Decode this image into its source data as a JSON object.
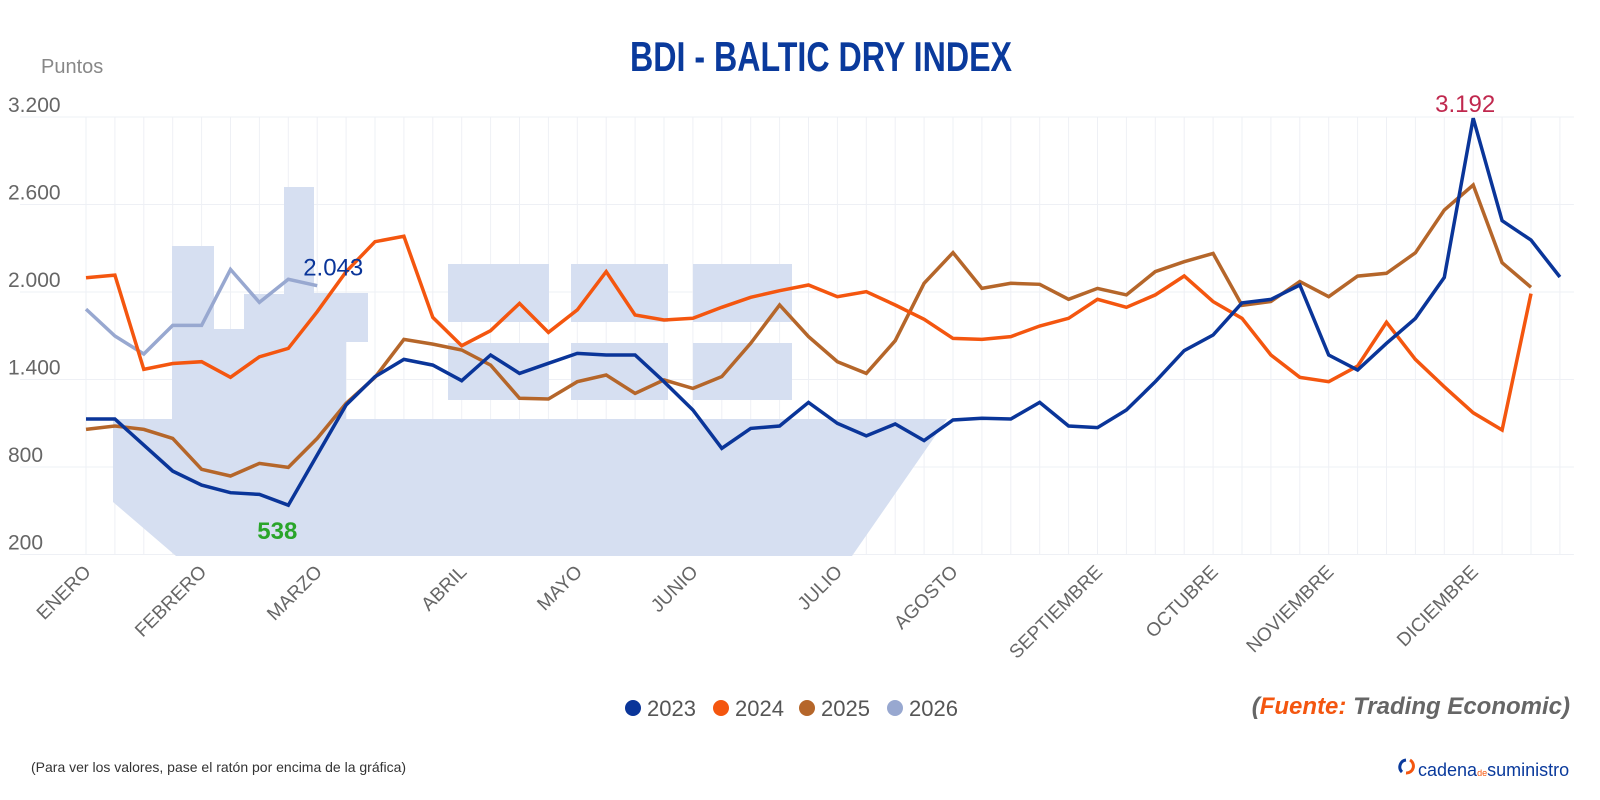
{
  "chart_data": {
    "type": "line",
    "title": "BDI - BALTIC DRY INDEX",
    "ylabel": "Puntos",
    "ylim": [
      200,
      3200
    ],
    "yticks": [
      "200",
      "800",
      "1.400",
      "2.000",
      "2.600",
      "3.200"
    ],
    "ytick_values": [
      200,
      800,
      1400,
      2000,
      2600,
      3200
    ],
    "x_count": 52,
    "xticks": [
      {
        "label": "ENERO",
        "index": 0
      },
      {
        "label": "FEBRERO",
        "index": 4
      },
      {
        "label": "MARZO",
        "index": 8
      },
      {
        "label": "ABRIL",
        "index": 13
      },
      {
        "label": "MAYO",
        "index": 17
      },
      {
        "label": "JUNIO",
        "index": 21
      },
      {
        "label": "JULIO",
        "index": 26
      },
      {
        "label": "AGOSTO",
        "index": 30
      },
      {
        "label": "SEPTIEMBRE",
        "index": 35
      },
      {
        "label": "OCTUBRE",
        "index": 39
      },
      {
        "label": "NOVIEMBRE",
        "index": 43
      },
      {
        "label": "DICIEMBRE",
        "index": 48
      }
    ],
    "grid": true,
    "legend_position": "bottom",
    "series": [
      {
        "name": "2023",
        "color": "#0a3599",
        "values": [
          1129,
          1129,
          950,
          772,
          676,
          624,
          612,
          538,
          882,
          1225,
          1419,
          1538,
          1499,
          1392,
          1568,
          1442,
          1511,
          1579,
          1568,
          1568,
          1385,
          1191,
          928,
          1065,
          1081,
          1243,
          1099,
          1013,
          1095,
          981,
          1122,
          1134,
          1129,
          1243,
          1081,
          1070,
          1191,
          1385,
          1598,
          1705,
          1925,
          1949,
          2048,
          1568,
          1465,
          1648,
          1819,
          2100,
          3192,
          2489,
          2356,
          2103
        ]
      },
      {
        "name": "2024",
        "color": "#f4560f",
        "values": [
          2098,
          2116,
          1469,
          1510,
          1522,
          1415,
          1556,
          1613,
          1865,
          2139,
          2345,
          2382,
          1826,
          1632,
          1735,
          1922,
          1723,
          1877,
          2140,
          1842,
          1808,
          1820,
          1895,
          1964,
          2009,
          2048,
          1968,
          2002,
          1911,
          1813,
          1682,
          1675,
          1694,
          1767,
          1820,
          1950,
          1895,
          1980,
          2110,
          1934,
          1820,
          1568,
          1415,
          1385,
          1492,
          1792,
          1538,
          1350,
          1172,
          1054,
          1989
        ]
      },
      {
        "name": "2025",
        "color": "#b5662a",
        "values": [
          1058,
          1081,
          1058,
          996,
          784,
          738,
          825,
          797,
          996,
          1236,
          1415,
          1675,
          1643,
          1602,
          1499,
          1271,
          1266,
          1385,
          1431,
          1305,
          1397,
          1339,
          1420,
          1648,
          1911,
          1694,
          1522,
          1442,
          1666,
          2060,
          2270,
          2025,
          2060,
          2053,
          1950,
          2025,
          1980,
          2140,
          2208,
          2265,
          1908,
          1935,
          2071,
          1968,
          2109,
          2128,
          2269,
          2562,
          2734,
          2201,
          2032
        ]
      },
      {
        "name": "2026",
        "color": "#98a8d0",
        "values": [
          1883,
          1698,
          1575,
          1771,
          1771,
          2155,
          1929,
          2087,
          2043
        ]
      }
    ],
    "annotations": [
      {
        "text": "3.192",
        "series": "2023",
        "index": 48,
        "value": 3192,
        "color": "#c0284e"
      },
      {
        "text": "2.043",
        "series": "2026",
        "index": 8,
        "value": 2043,
        "color": "#0a3599"
      },
      {
        "text": "538",
        "series": "2023",
        "index": 7,
        "value": 538,
        "color": "#2aa52a"
      }
    ]
  },
  "source": {
    "open": "(",
    "label": "Fuente",
    "colon": ":",
    "text": " Trading Economic)"
  },
  "footnote": "(Para ver los valores, pase el ratón por encima de la gráfica)",
  "logo": {
    "part1": "cadena",
    "part2": "de",
    "part3": "suministro"
  },
  "colors": {
    "title": "#0a3a9c",
    "ship": "#d6dff1",
    "source_accent": "#f4560f"
  }
}
